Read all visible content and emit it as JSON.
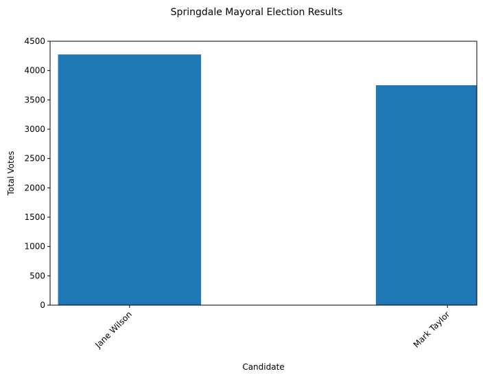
{
  "chart_data": {
    "type": "bar",
    "title": "Springdale Mayoral Election Results",
    "xlabel": "Candidate",
    "ylabel": "Total Votes",
    "categories": [
      "Jane Wilson",
      "Mark Taylor"
    ],
    "x": [
      0,
      2
    ],
    "values": [
      4275,
      3750
    ],
    "ylim": [
      0,
      4500
    ],
    "xlim": [
      -0.5,
      2.185
    ],
    "yticks": [
      0,
      500,
      1000,
      1500,
      2000,
      2500,
      3000,
      3500,
      4000,
      4500
    ],
    "grid": false,
    "legend": false,
    "bar_color": "#1f77b4"
  }
}
